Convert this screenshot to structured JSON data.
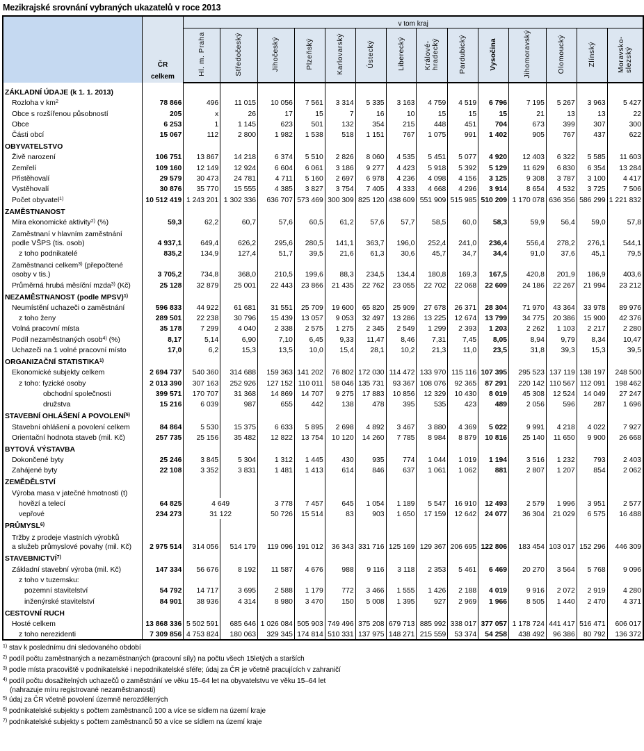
{
  "title": "Mezikrajské srovnání vybraných ukazatelů v roce 2013",
  "header": {
    "group_label": "v tom kraj",
    "cr_label": [
      "ČR",
      "celkem"
    ],
    "regions": [
      "Hl. m. Praha",
      "Středočeský",
      "Jihočeský",
      "Plzeňský",
      "Karlovarský",
      "Ústecký",
      "Liberecký",
      "Královéhradecký",
      "Pardubický",
      "Vysočina",
      "Jihomoravský",
      "Olomoucký",
      "Zlínský",
      "Moravskoslezský"
    ],
    "region_display": [
      [
        "Hl. m. Praha"
      ],
      [
        "Středočeský"
      ],
      [
        "Jihočeský"
      ],
      [
        "Plzeňský"
      ],
      [
        "Karlovarský"
      ],
      [
        "Ústecký"
      ],
      [
        "Liberecký"
      ],
      [
        "Králové-",
        "hradecký"
      ],
      [
        "Pardubický"
      ],
      [
        "Vysočina"
      ],
      [
        "Jihomoravský"
      ],
      [
        "Olomoucký"
      ],
      [
        "Zlínský"
      ],
      [
        "Moravsko-",
        "slezský"
      ]
    ],
    "highlighted_region": "Vysočina"
  },
  "colors": {
    "header_label_bg": "#c5d9f1",
    "header_bg": "#dce6f1"
  },
  "rows": [
    {
      "type": "section",
      "label": "ZÁKLADNÍ ÚDAJE (k 1. 1. 2013)"
    },
    {
      "label": "Rozloha v km",
      "sup": "2",
      "level": 1,
      "values": [
        "78 866",
        "496",
        "11 015",
        "10 056",
        "7 561",
        "3 314",
        "5 335",
        "3 163",
        "4 759",
        "4 519",
        "6 796",
        "7 195",
        "5 267",
        "3 963",
        "5 427"
      ]
    },
    {
      "label": "Obce s rozšířenou působností",
      "level": 1,
      "values": [
        "205",
        "x",
        "26",
        "17",
        "15",
        "7",
        "16",
        "10",
        "15",
        "15",
        "15",
        "21",
        "13",
        "13",
        "22"
      ]
    },
    {
      "label": "Obce",
      "level": 1,
      "values": [
        "6 253",
        "1",
        "1 145",
        "623",
        "501",
        "132",
        "354",
        "215",
        "448",
        "451",
        "704",
        "673",
        "399",
        "307",
        "300"
      ]
    },
    {
      "label": "Části obcí",
      "level": 1,
      "values": [
        "15 067",
        "112",
        "2 800",
        "1 982",
        "1 538",
        "518",
        "1 151",
        "767",
        "1 075",
        "991",
        "1 402",
        "905",
        "767",
        "437",
        "622"
      ]
    },
    {
      "type": "section",
      "label": "OBYVATELSTVO"
    },
    {
      "label": "Živě narození",
      "level": 1,
      "values": [
        "106 751",
        "13 867",
        "14 218",
        "6 374",
        "5 510",
        "2 826",
        "8 060",
        "4 535",
        "5 451",
        "5 077",
        "4 920",
        "12 403",
        "6 322",
        "5 585",
        "11 603"
      ]
    },
    {
      "label": "Zemřelí",
      "level": 1,
      "values": [
        "109 160",
        "12 149",
        "12 924",
        "6 604",
        "6 061",
        "3 186",
        "9 277",
        "4 423",
        "5 918",
        "5 392",
        "5 129",
        "11 629",
        "6 830",
        "6 354",
        "13 284"
      ]
    },
    {
      "label": "Přistěhovalí",
      "level": 1,
      "values": [
        "29 579",
        "30 473",
        "24 781",
        "4 711",
        "5 160",
        "2 697",
        "6 978",
        "4 236",
        "4 098",
        "4 156",
        "3 125",
        "9 308",
        "3 787",
        "3 100",
        "4 417"
      ]
    },
    {
      "label": "Vystěhovalí",
      "level": 1,
      "values": [
        "30 876",
        "35 770",
        "15 555",
        "4 385",
        "3 827",
        "3 754",
        "7 405",
        "4 333",
        "4 668",
        "4 296",
        "3 914",
        "8 654",
        "4 532",
        "3 725",
        "7 506"
      ]
    },
    {
      "label": "Počet obyvatel",
      "sup": "1)",
      "level": 1,
      "values": [
        "10 512 419",
        "1 243 201",
        "1 302 336",
        "636 707",
        "573 469",
        "300 309",
        "825 120",
        "438 609",
        "551 909",
        "515 985",
        "510 209",
        "1 170 078",
        "636 356",
        "586 299",
        "1 221 832"
      ]
    },
    {
      "type": "section",
      "label": "ZAMĚSTNANOST"
    },
    {
      "label": "Míra ekonomické aktivity",
      "sup": "2)",
      "suffix": " (%)",
      "level": 1,
      "values": [
        "59,3",
        "62,2",
        "60,7",
        "57,6",
        "60,5",
        "61,2",
        "57,6",
        "57,7",
        "58,5",
        "60,0",
        "58,3",
        "59,9",
        "56,4",
        "59,0",
        "57,8"
      ]
    },
    {
      "label": [
        "Zaměstnaní v hlavním zaměstnání",
        "podle VŠPS (tis. osob)"
      ],
      "level": 1,
      "values": [
        "4 937,1",
        "649,4",
        "626,2",
        "295,6",
        "280,5",
        "141,1",
        "363,7",
        "196,0",
        "252,4",
        "241,0",
        "236,4",
        "556,4",
        "278,2",
        "276,1",
        "544,1"
      ]
    },
    {
      "label": "z toho podnikatelé",
      "level": 2,
      "values": [
        "835,2",
        "134,9",
        "127,4",
        "51,7",
        "39,5",
        "21,6",
        "61,3",
        "30,6",
        "45,7",
        "34,7",
        "34,4",
        "91,0",
        "37,6",
        "45,1",
        "79,5"
      ]
    },
    {
      "label": [
        "Zaměstnanci celkem",
        "osoby v tis.)"
      ],
      "sup": "3)",
      "suffix": " (přepočtené",
      "level": 1,
      "values": [
        "3 705,2",
        "734,8",
        "368,0",
        "210,5",
        "199,6",
        "88,3",
        "234,5",
        "134,4",
        "180,8",
        "169,3",
        "167,5",
        "420,8",
        "201,9",
        "186,9",
        "403,6"
      ]
    },
    {
      "label": "Průměrná hrubá měsíční mzda",
      "sup": "3)",
      "suffix": "  (Kč)",
      "level": 1,
      "values": [
        "25 128",
        "32 879",
        "25 001",
        "22 443",
        "23 866",
        "21 435",
        "22 762",
        "23 055",
        "22 702",
        "22 068",
        "22 609",
        "24 186",
        "22 267",
        "21 994",
        "23 212"
      ]
    },
    {
      "type": "section",
      "label": "NEZAMĚSTNANOST (podle MPSV)",
      "sup": "1)"
    },
    {
      "label": "Neumístění uchazeči o zaměstnání",
      "level": 1,
      "values": [
        "596 833",
        "44 922",
        "61 681",
        "31 551",
        "25 709",
        "19 600",
        "65 820",
        "25 909",
        "27 678",
        "26 371",
        "28 304",
        "71 970",
        "43 364",
        "33 978",
        "89 976"
      ]
    },
    {
      "label": "z toho ženy",
      "level": 2,
      "values": [
        "289 501",
        "22 238",
        "30 796",
        "15 439",
        "13 057",
        "9 053",
        "32 497",
        "13 286",
        "13 225",
        "12 674",
        "13 799",
        "34 775",
        "20 386",
        "15 900",
        "42 376"
      ]
    },
    {
      "label": "Volná pracovní místa",
      "level": 1,
      "values": [
        "35 178",
        "7 299",
        "4 040",
        "2 338",
        "2 575",
        "1 275",
        "2 345",
        "2 549",
        "1 299",
        "2 393",
        "1 203",
        "2 262",
        "1 103",
        "2 217",
        "2 280"
      ]
    },
    {
      "label": "Podíl nezaměstnaných osob",
      "sup": "4)",
      "suffix": " (%)",
      "level": 1,
      "values": [
        "8,17",
        "5,14",
        "6,90",
        "7,10",
        "6,45",
        "9,33",
        "11,47",
        "8,46",
        "7,31",
        "7,45",
        "8,05",
        "8,94",
        "9,79",
        "8,34",
        "10,47"
      ]
    },
    {
      "label": "Uchazeči na 1 volné pracovní místo",
      "level": 1,
      "values": [
        "17,0",
        "6,2",
        "15,3",
        "13,5",
        "10,0",
        "15,4",
        "28,1",
        "10,2",
        "21,3",
        "11,0",
        "23,5",
        "31,8",
        "39,3",
        "15,3",
        "39,5"
      ]
    },
    {
      "type": "section",
      "label": "ORGANIZAČNÍ STATISTIKA",
      "sup": "1)"
    },
    {
      "label": "Ekonomické subjekty celkem",
      "level": 1,
      "values": [
        "2 694 737",
        "540 360",
        "314 688",
        "159 363",
        "141 202",
        "76 802",
        "172 030",
        "114 472",
        "133 970",
        "115 116",
        "107 395",
        "295 523",
        "137 119",
        "138 197",
        "248 500"
      ]
    },
    {
      "label": "z toho: fyzické osoby",
      "level": 2,
      "values": [
        "2 013 390",
        "307 163",
        "252 926",
        "127 152",
        "110 011",
        "58 046",
        "135 731",
        "93 367",
        "108 076",
        "92 365",
        "87 291",
        "220 142",
        "110 567",
        "112 091",
        "198 462"
      ]
    },
    {
      "label": "obchodní společnosti",
      "level": 4,
      "values": [
        "399 571",
        "170 707",
        "31 368",
        "14 869",
        "14 707",
        "9 275",
        "17 883",
        "10 856",
        "12 329",
        "10 430",
        "8 019",
        "45 308",
        "12 524",
        "14 049",
        "27 247"
      ]
    },
    {
      "label": "družstva",
      "level": 4,
      "values": [
        "15 216",
        "6 039",
        "987",
        "655",
        "442",
        "138",
        "478",
        "395",
        "535",
        "423",
        "489",
        "2 056",
        "596",
        "287",
        "1 696"
      ]
    },
    {
      "type": "section",
      "label": "STAVEBNÍ OHLÁŠENÍ A POVOLENÍ",
      "sup": "5)"
    },
    {
      "label": "Stavební ohlášení a povolení celkem",
      "level": 1,
      "values": [
        "84 864",
        "5 530",
        "15 375",
        "6 633",
        "5 895",
        "2 698",
        "4 892",
        "3 467",
        "3 880",
        "4 369",
        "5 022",
        "9 991",
        "4 218",
        "4 022",
        "7 927"
      ]
    },
    {
      "label": "Orientační hodnota staveb  (mil. Kč)",
      "level": 1,
      "values": [
        "257 735",
        "25 156",
        "35 482",
        "12 822",
        "13 754",
        "10 120",
        "14 260",
        "7 785",
        "8 984",
        "8 879",
        "10 816",
        "25 140",
        "11 650",
        "9 900",
        "26 668"
      ]
    },
    {
      "type": "section",
      "label": "BYTOVÁ VÝSTAVBA"
    },
    {
      "label": "Dokončené byty",
      "level": 1,
      "values": [
        "25 246",
        "3 845",
        "5 304",
        "1 312",
        "1 445",
        "430",
        "935",
        "774",
        "1 044",
        "1 019",
        "1 194",
        "3 516",
        "1 232",
        "793",
        "2 403"
      ]
    },
    {
      "label": "Zahájené byty",
      "level": 1,
      "values": [
        "22 108",
        "3 352",
        "3 831",
        "1 481",
        "1 413",
        "614",
        "846",
        "637",
        "1 061",
        "1 062",
        "881",
        "2 807",
        "1 207",
        "854",
        "2 062"
      ]
    },
    {
      "type": "section",
      "label": "ZEMĚDĚLSTVÍ"
    },
    {
      "label": "Výroba masa v jatečné hmotnosti (t)",
      "level": 1,
      "values": [
        "",
        "",
        "",
        "",
        "",
        "",
        "",
        "",
        "",
        "",
        "",
        "",
        "",
        "",
        ""
      ]
    },
    {
      "label": "hovězí a telecí",
      "level": 2,
      "values": [
        "64 825",
        "4 649",
        null,
        "3 778",
        "7 457",
        "645",
        "1 054",
        "1 189",
        "5 547",
        "16 910",
        "12 493",
        "2 579",
        "1 996",
        "3 951",
        "2 577"
      ]
    },
    {
      "label": "vepřové",
      "level": 2,
      "values": [
        "234 273",
        "31 122",
        null,
        "50 726",
        "15 514",
        "83",
        "903",
        "1 650",
        "17 159",
        "12 642",
        "24 077",
        "36 304",
        "21 029",
        "6 575",
        "16 488"
      ]
    },
    {
      "type": "section",
      "label": "PRŮMYSL",
      "sup": "6)"
    },
    {
      "label": [
        "Tržby z prodeje vlastních výrobků",
        "a služeb průmyslové povahy (mil. Kč)"
      ],
      "level": 1,
      "values": [
        "2 975 514",
        "314 056",
        "514 179",
        "119 096",
        "191 012",
        "36 343",
        "331 716",
        "125 169",
        "129 367",
        "206 695",
        "122 806",
        "183 454",
        "103 017",
        "152 296",
        "446 309"
      ]
    },
    {
      "type": "section",
      "label": "STAVEBNICTVÍ",
      "sup": "7)"
    },
    {
      "label": "Základní stavební výroba (mil. Kč)",
      "level": 1,
      "values": [
        "147 334",
        "56 676",
        "8 192",
        "11 587",
        "4 676",
        "988",
        "9 116",
        "3 118",
        "2 353",
        "5 461",
        "6 469",
        "20 270",
        "3 564",
        "5 768",
        "9 096"
      ]
    },
    {
      "label": "z toho v tuzemsku:",
      "level": 2,
      "values": [
        "",
        "",
        "",
        "",
        "",
        "",
        "",
        "",
        "",
        "",
        "",
        "",
        "",
        "",
        ""
      ]
    },
    {
      "label": "pozemní stavitelství",
      "level": 3,
      "values": [
        "54 792",
        "14 717",
        "3 695",
        "2 588",
        "1 179",
        "772",
        "3 466",
        "1 555",
        "1 426",
        "2 188",
        "4 019",
        "9 916",
        "2 072",
        "2 919",
        "4 280"
      ]
    },
    {
      "label": "inženýrské stavitelství",
      "level": 3,
      "values": [
        "84 901",
        "38 936",
        "4 314",
        "8 980",
        "3 470",
        "150",
        "5 008",
        "1 395",
        "927",
        "2 969",
        "1 966",
        "8 505",
        "1 440",
        "2 470",
        "4 371"
      ]
    },
    {
      "type": "section",
      "label": "CESTOVNÍ RUCH"
    },
    {
      "label": "Hosté celkem",
      "level": 1,
      "values": [
        "13 868 336",
        "5 502 591",
        "685 646",
        "1 026 084",
        "505 903",
        "749 496",
        "375 208",
        "679 713",
        "885 992",
        "338 017",
        "377 057",
        "1 178 724",
        "441 417",
        "516 471",
        "606 017"
      ]
    },
    {
      "label": "z toho nerezidenti",
      "level": 2,
      "values": [
        "7 309 856",
        "4 753 824",
        "180 063",
        "329 345",
        "174 814",
        "510 331",
        "137 975",
        "148 271",
        "215 559",
        "53 374",
        "54 258",
        "438 492",
        "96 386",
        "80 792",
        "136 372"
      ]
    }
  ],
  "footnotes": [
    {
      "mark": "1)",
      "text": "stav k poslednímu dni sledovaného období"
    },
    {
      "mark": "2)",
      "text": "podíl počtu zaměstnaných a nezaměstnaných (pracovní síly) na počtu všech 15letých a starších"
    },
    {
      "mark": "3)",
      "text": "podle místa pracoviště v podnikatelské i nepodnikatelské sféře; údaj za ČR je včetně pracujících v zahraničí"
    },
    {
      "mark": "4)",
      "text": "podíl počtu dosažitelných uchazečů o zaměstnání ve věku 15–64 let na obyvatelstvu ve věku 15–64 let",
      "cont": "(nahrazuje míru registrované nezaměstnanosti)"
    },
    {
      "mark": "5)",
      "text": "údaj za ČR včetně povolení územně nerozdělených"
    },
    {
      "mark": "6)",
      "text": "podnikatelské subjekty s počtem zaměstnanců 100 a více se sídlem na území kraje"
    },
    {
      "mark": "7)",
      "text": "podnikatelské subjekty s počtem zaměstnanců 50 a více se sídlem na území kraje"
    }
  ]
}
